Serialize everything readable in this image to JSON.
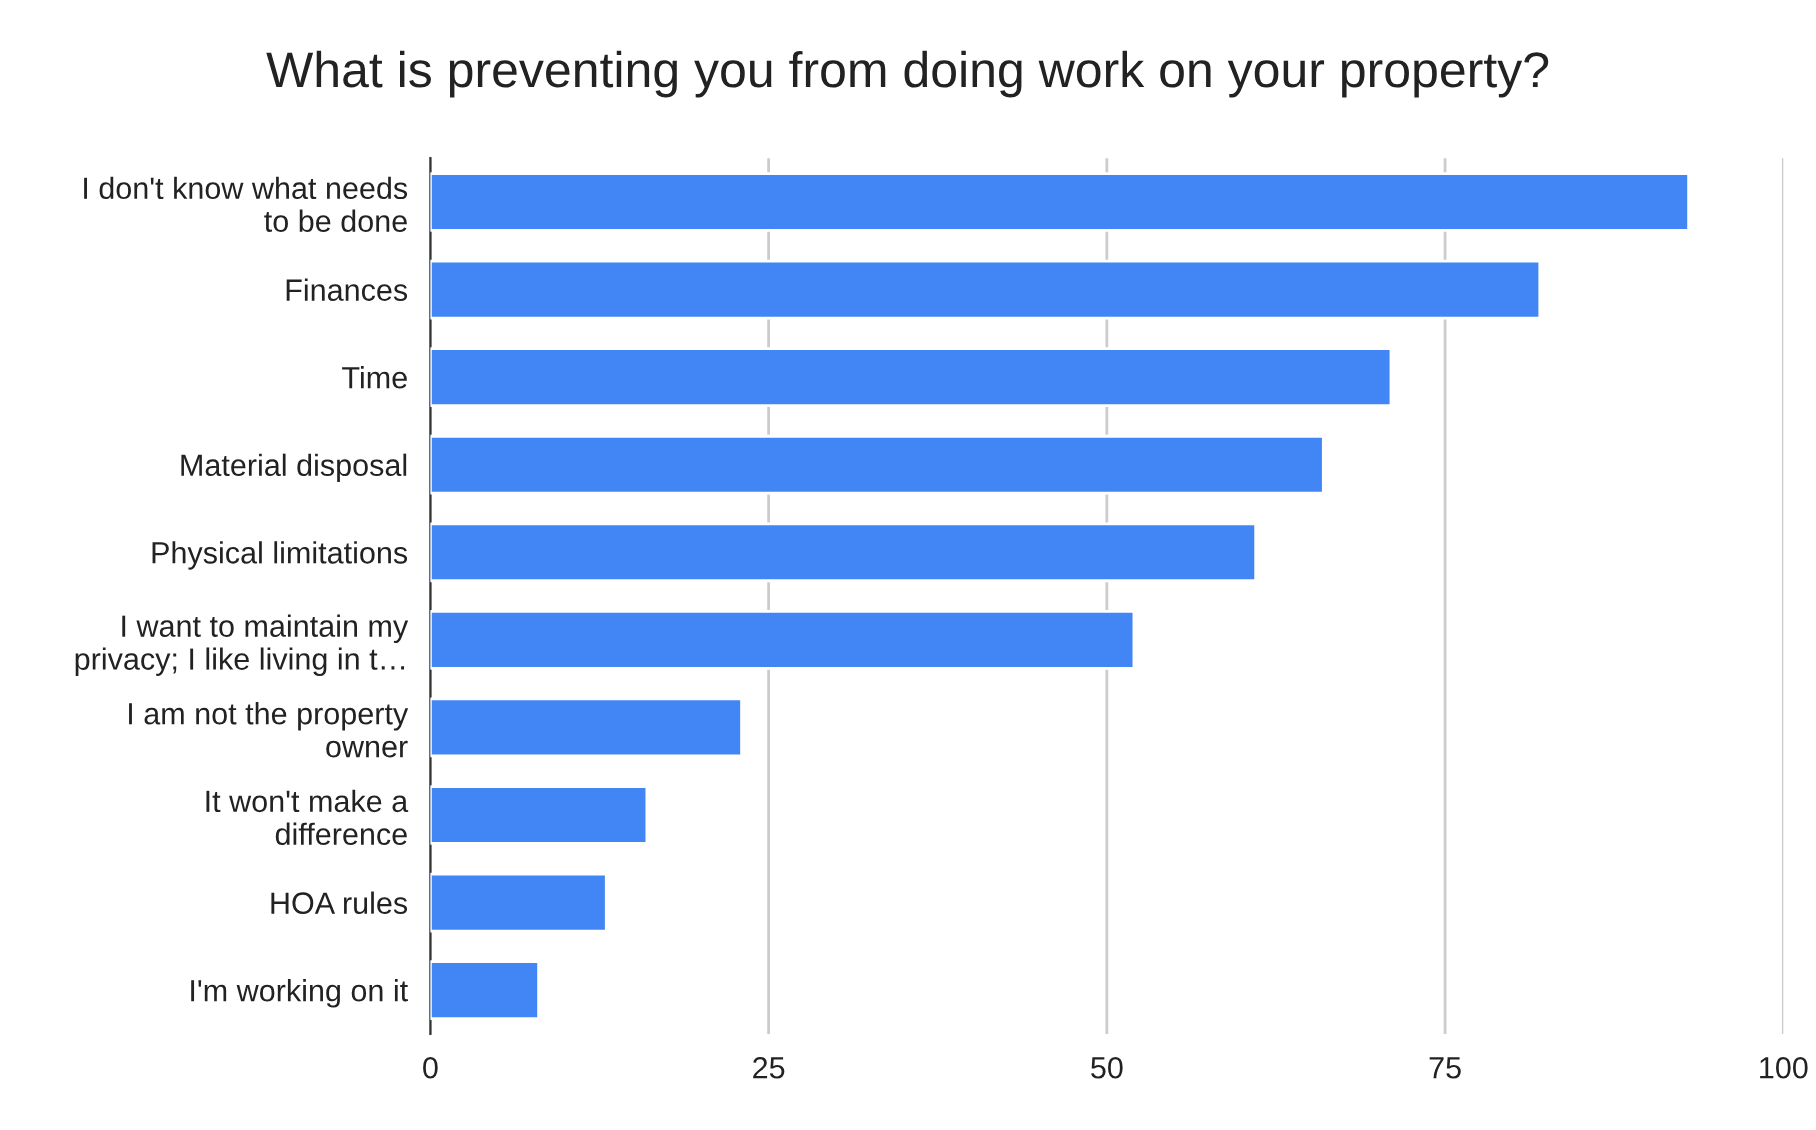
{
  "chart_data": {
    "type": "bar",
    "orientation": "horizontal",
    "title": "What is preventing you from doing work on your property?",
    "categories": [
      "I don't know what needs\nto be done",
      "Finances",
      "Time",
      "Material disposal",
      "Physical limitations",
      "I want to maintain my\nprivacy; I like living in t…",
      "I am not the property\nowner",
      "It won't make a\ndifference",
      "HOA rules",
      "I'm working on it"
    ],
    "values": [
      93,
      82,
      71,
      66,
      61,
      52,
      23,
      16,
      13,
      8
    ],
    "color": "#4285f4",
    "xlim": [
      0,
      100
    ],
    "xticks": [
      0,
      25,
      50,
      75,
      100
    ],
    "grid": "x"
  }
}
